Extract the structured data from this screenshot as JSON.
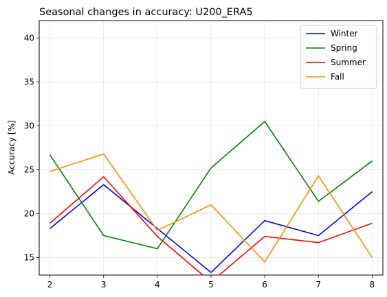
{
  "chart_data": {
    "type": "line",
    "title": "Seasonal changes in accuracy: U200_ERA5",
    "xlabel": "",
    "ylabel": "Accuracy [%]",
    "x": [
      2,
      3,
      4,
      5,
      6,
      7,
      8
    ],
    "xlim": [
      1.8,
      8.2
    ],
    "ylim": [
      13,
      42
    ],
    "xticks": [
      2,
      3,
      4,
      5,
      6,
      7,
      8
    ],
    "yticks": [
      15,
      20,
      25,
      30,
      35,
      40
    ],
    "grid": true,
    "legend_position": "top-right",
    "series": [
      {
        "name": "Winter",
        "color": "#0000ff",
        "values": [
          18.3,
          23.3,
          18.3,
          13.3,
          19.2,
          17.5,
          22.5
        ]
      },
      {
        "name": "Spring",
        "color": "#008000",
        "values": [
          26.7,
          17.5,
          16.0,
          25.2,
          30.5,
          21.4,
          26.0
        ]
      },
      {
        "name": "Summer",
        "color": "#ff0000",
        "values": [
          18.9,
          24.2,
          17.4,
          12.2,
          17.4,
          16.7,
          18.9
        ]
      },
      {
        "name": "Fall",
        "color": "#ff8c00",
        "values": [
          24.8,
          26.8,
          18.1,
          21.0,
          14.5,
          24.3,
          15.0
        ]
      }
    ]
  }
}
